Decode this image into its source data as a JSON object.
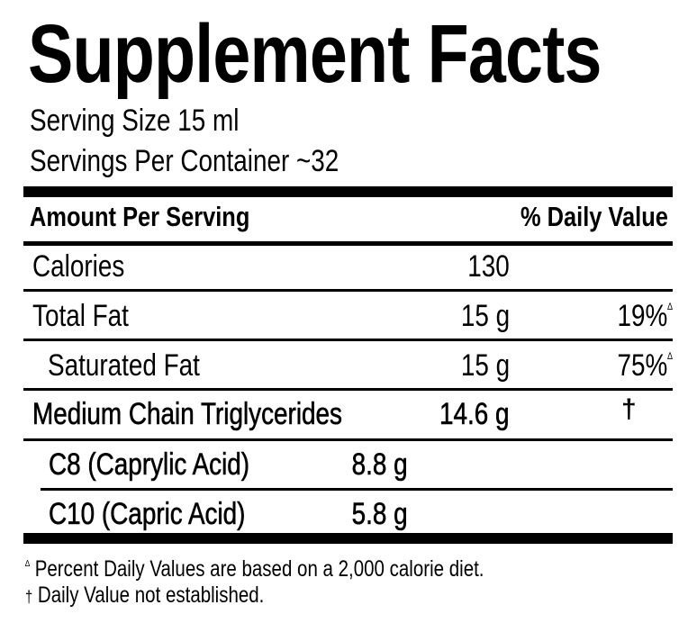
{
  "title": "Supplement Facts",
  "serving_size": "Serving Size 15 ml",
  "servings_per_container": "Servings Per Container ~32",
  "header": {
    "amount_per_serving": "Amount Per Serving",
    "daily_value": "% Daily Value"
  },
  "rows": [
    {
      "name": "Calories",
      "amount": "130",
      "dv": ""
    },
    {
      "name": "Total Fat",
      "amount": "15 g",
      "dv": "19%",
      "dv_mark": "∆"
    },
    {
      "name": "Saturated Fat",
      "amount": "15 g",
      "dv": "75%",
      "dv_mark": "∆"
    },
    {
      "name": "Medium Chain Triglycerides",
      "amount": "14.6 g",
      "dv": "†"
    },
    {
      "name": "C8 (Caprylic Acid)",
      "amount": "8.8 g"
    },
    {
      "name": "C10 (Capric Acid)",
      "amount": "5.8 g"
    }
  ],
  "footnotes": [
    {
      "mark": "∆",
      "text": "Percent Daily Values are based on a 2,000 calorie diet."
    },
    {
      "mark": "†",
      "text": "Daily Value not established."
    }
  ]
}
